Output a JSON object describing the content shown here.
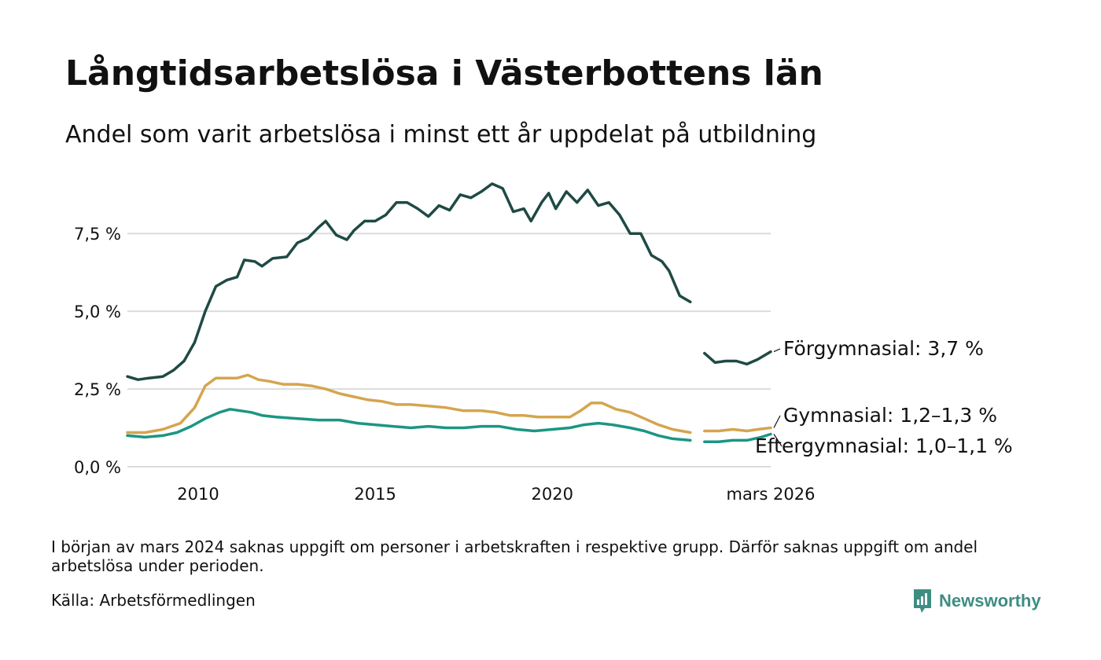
{
  "title": "Långtidsarbetslösa i Västerbottens län",
  "subtitle": "Andel som varit arbetslösa i minst ett år uppdelat på utbildning",
  "note": "I början av mars 2024 saknas uppgift om personer i arbetskraften i respektive grupp. Därför saknas uppgift om andel arbetslösa under perioden.",
  "source": "Källa: Arbetsförmedlingen",
  "brand": "Newsworthy",
  "chart_data": {
    "type": "line",
    "y_ticks": [
      0,
      2.5,
      5,
      7.5
    ],
    "y_tick_labels": [
      "0,0 %",
      "2,5 %",
      "5,0 %",
      "7,5 %"
    ],
    "ylim": [
      0,
      9.3
    ],
    "xlim": [
      2008.0,
      2026.17
    ],
    "x_ticks": [
      2010,
      2015,
      2020,
      2026.17
    ],
    "x_tick_labels": [
      "2010",
      "2015",
      "2020",
      "mars 2026"
    ],
    "gap": [
      2023.9,
      2024.3
    ],
    "series": [
      {
        "name": "Förgymnasial",
        "end_label": "Förgymnasial: 3,7 %",
        "color": "#1f4a44",
        "points": [
          [
            2008.0,
            2.9
          ],
          [
            2008.3,
            2.8
          ],
          [
            2008.6,
            2.85
          ],
          [
            2009.0,
            2.9
          ],
          [
            2009.3,
            3.1
          ],
          [
            2009.6,
            3.4
          ],
          [
            2009.9,
            4.0
          ],
          [
            2010.2,
            5.0
          ],
          [
            2010.5,
            5.8
          ],
          [
            2010.8,
            6.0
          ],
          [
            2011.1,
            6.1
          ],
          [
            2011.3,
            6.65
          ],
          [
            2011.6,
            6.6
          ],
          [
            2011.8,
            6.45
          ],
          [
            2012.1,
            6.7
          ],
          [
            2012.5,
            6.75
          ],
          [
            2012.8,
            7.2
          ],
          [
            2013.1,
            7.35
          ],
          [
            2013.4,
            7.7
          ],
          [
            2013.6,
            7.9
          ],
          [
            2013.9,
            7.45
          ],
          [
            2014.2,
            7.3
          ],
          [
            2014.4,
            7.6
          ],
          [
            2014.7,
            7.9
          ],
          [
            2015.0,
            7.9
          ],
          [
            2015.3,
            8.1
          ],
          [
            2015.6,
            8.5
          ],
          [
            2015.9,
            8.5
          ],
          [
            2016.2,
            8.3
          ],
          [
            2016.5,
            8.05
          ],
          [
            2016.8,
            8.4
          ],
          [
            2017.1,
            8.25
          ],
          [
            2017.4,
            8.75
          ],
          [
            2017.7,
            8.65
          ],
          [
            2018.0,
            8.85
          ],
          [
            2018.3,
            9.1
          ],
          [
            2018.6,
            8.95
          ],
          [
            2018.9,
            8.2
          ],
          [
            2019.2,
            8.3
          ],
          [
            2019.4,
            7.9
          ],
          [
            2019.7,
            8.5
          ],
          [
            2019.9,
            8.8
          ],
          [
            2020.1,
            8.3
          ],
          [
            2020.4,
            8.85
          ],
          [
            2020.7,
            8.5
          ],
          [
            2021.0,
            8.9
          ],
          [
            2021.3,
            8.4
          ],
          [
            2021.6,
            8.5
          ],
          [
            2021.9,
            8.1
          ],
          [
            2022.2,
            7.5
          ],
          [
            2022.5,
            7.5
          ],
          [
            2022.8,
            6.8
          ],
          [
            2023.1,
            6.6
          ],
          [
            2023.3,
            6.3
          ],
          [
            2023.6,
            5.5
          ],
          [
            2023.9,
            5.3
          ],
          [
            2024.3,
            3.65
          ],
          [
            2024.6,
            3.35
          ],
          [
            2024.9,
            3.4
          ],
          [
            2025.2,
            3.4
          ],
          [
            2025.5,
            3.3
          ],
          [
            2025.8,
            3.45
          ],
          [
            2026.17,
            3.7
          ]
        ]
      },
      {
        "name": "Gymnasial",
        "end_label": "Gymnasial: 1,2–1,3 %",
        "color": "#d4a54f",
        "points": [
          [
            2008.0,
            1.1
          ],
          [
            2008.5,
            1.1
          ],
          [
            2009.0,
            1.2
          ],
          [
            2009.5,
            1.4
          ],
          [
            2009.9,
            1.9
          ],
          [
            2010.2,
            2.6
          ],
          [
            2010.5,
            2.85
          ],
          [
            2010.8,
            2.85
          ],
          [
            2011.1,
            2.85
          ],
          [
            2011.4,
            2.95
          ],
          [
            2011.7,
            2.8
          ],
          [
            2012.0,
            2.75
          ],
          [
            2012.4,
            2.65
          ],
          [
            2012.8,
            2.65
          ],
          [
            2013.2,
            2.6
          ],
          [
            2013.6,
            2.5
          ],
          [
            2014.0,
            2.35
          ],
          [
            2014.4,
            2.25
          ],
          [
            2014.8,
            2.15
          ],
          [
            2015.2,
            2.1
          ],
          [
            2015.6,
            2.0
          ],
          [
            2016.0,
            2.0
          ],
          [
            2016.5,
            1.95
          ],
          [
            2017.0,
            1.9
          ],
          [
            2017.5,
            1.8
          ],
          [
            2018.0,
            1.8
          ],
          [
            2018.4,
            1.75
          ],
          [
            2018.8,
            1.65
          ],
          [
            2019.2,
            1.65
          ],
          [
            2019.6,
            1.6
          ],
          [
            2020.0,
            1.6
          ],
          [
            2020.5,
            1.6
          ],
          [
            2020.8,
            1.8
          ],
          [
            2021.1,
            2.05
          ],
          [
            2021.4,
            2.05
          ],
          [
            2021.8,
            1.85
          ],
          [
            2022.2,
            1.75
          ],
          [
            2022.6,
            1.55
          ],
          [
            2023.0,
            1.35
          ],
          [
            2023.4,
            1.2
          ],
          [
            2023.9,
            1.1
          ],
          [
            2024.3,
            1.15
          ],
          [
            2024.7,
            1.15
          ],
          [
            2025.1,
            1.2
          ],
          [
            2025.5,
            1.15
          ],
          [
            2025.8,
            1.2
          ],
          [
            2026.17,
            1.25
          ]
        ]
      },
      {
        "name": "Eftergymnasial",
        "end_label": "Eftergymnasial: 1,0–1,1 %",
        "color": "#1b9683",
        "points": [
          [
            2008.0,
            1.0
          ],
          [
            2008.5,
            0.95
          ],
          [
            2009.0,
            1.0
          ],
          [
            2009.4,
            1.1
          ],
          [
            2009.8,
            1.3
          ],
          [
            2010.2,
            1.55
          ],
          [
            2010.6,
            1.75
          ],
          [
            2010.9,
            1.85
          ],
          [
            2011.2,
            1.8
          ],
          [
            2011.5,
            1.75
          ],
          [
            2011.8,
            1.65
          ],
          [
            2012.2,
            1.6
          ],
          [
            2012.8,
            1.55
          ],
          [
            2013.4,
            1.5
          ],
          [
            2014.0,
            1.5
          ],
          [
            2014.5,
            1.4
          ],
          [
            2015.0,
            1.35
          ],
          [
            2015.5,
            1.3
          ],
          [
            2016.0,
            1.25
          ],
          [
            2016.5,
            1.3
          ],
          [
            2017.0,
            1.25
          ],
          [
            2017.5,
            1.25
          ],
          [
            2018.0,
            1.3
          ],
          [
            2018.5,
            1.3
          ],
          [
            2019.0,
            1.2
          ],
          [
            2019.5,
            1.15
          ],
          [
            2020.0,
            1.2
          ],
          [
            2020.5,
            1.25
          ],
          [
            2020.9,
            1.35
          ],
          [
            2021.3,
            1.4
          ],
          [
            2021.7,
            1.35
          ],
          [
            2022.2,
            1.25
          ],
          [
            2022.6,
            1.15
          ],
          [
            2023.0,
            1.0
          ],
          [
            2023.4,
            0.9
          ],
          [
            2023.9,
            0.85
          ],
          [
            2024.3,
            0.8
          ],
          [
            2024.7,
            0.8
          ],
          [
            2025.1,
            0.85
          ],
          [
            2025.5,
            0.85
          ],
          [
            2025.9,
            0.95
          ],
          [
            2026.17,
            1.05
          ]
        ]
      }
    ]
  }
}
